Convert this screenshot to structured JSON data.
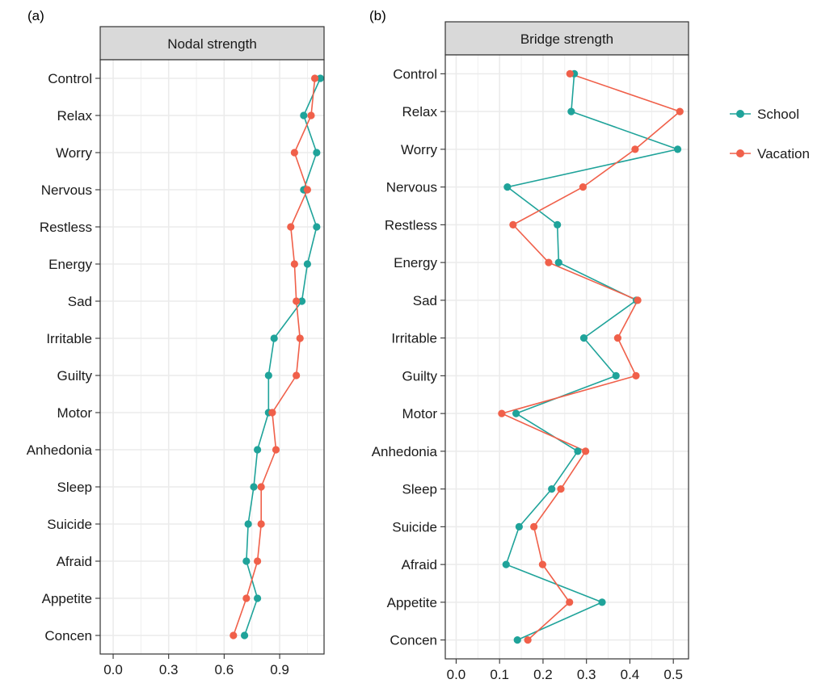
{
  "panels": [
    {
      "tag": "(a)",
      "strip": "Nodal strength"
    },
    {
      "tag": "(b)",
      "strip": "Bridge strength"
    }
  ],
  "legend": {
    "items": [
      {
        "label": "School",
        "color": "#1fa39a"
      },
      {
        "label": "Vacation",
        "color": "#f0604a"
      }
    ]
  },
  "colors": {
    "school": "#1fa39a",
    "vacation": "#f0604a",
    "strip_bg": "#d9d9d9",
    "grid": "#ebebeb",
    "axis": "#333333"
  },
  "chart_data": [
    {
      "type": "line",
      "title": "Nodal strength",
      "categories": [
        "Control",
        "Relax",
        "Worry",
        "Nervous",
        "Restless",
        "Energy",
        "Sad",
        "Irritable",
        "Guilty",
        "Motor",
        "Anhedonia",
        "Sleep",
        "Suicide",
        "Afraid",
        "Appetite",
        "Concen"
      ],
      "xlim": [
        -0.07,
        1.14
      ],
      "xticks": [
        0.0,
        0.3,
        0.6,
        0.9
      ],
      "xtick_labels": [
        "0.0",
        "0.3",
        "0.6",
        "0.9"
      ],
      "grid": true,
      "legend": "none",
      "series": [
        {
          "name": "School",
          "values": [
            1.12,
            1.03,
            1.1,
            1.03,
            1.1,
            1.05,
            1.02,
            0.87,
            0.84,
            0.84,
            0.78,
            0.76,
            0.73,
            0.72,
            0.78,
            0.71
          ]
        },
        {
          "name": "Vacation",
          "values": [
            1.09,
            1.07,
            0.98,
            1.05,
            0.96,
            0.98,
            0.99,
            1.01,
            0.99,
            0.86,
            0.88,
            0.8,
            0.8,
            0.78,
            0.72,
            0.65
          ]
        }
      ]
    },
    {
      "type": "line",
      "title": "Bridge strength",
      "categories": [
        "Control",
        "Relax",
        "Worry",
        "Nervous",
        "Restless",
        "Energy",
        "Sad",
        "Irritable",
        "Guilty",
        "Motor",
        "Anhedonia",
        "Sleep",
        "Suicide",
        "Afraid",
        "Appetite",
        "Concen"
      ],
      "xlim": [
        -0.025,
        0.535
      ],
      "xticks": [
        0.0,
        0.1,
        0.2,
        0.3,
        0.4,
        0.5
      ],
      "xtick_labels": [
        "0.0",
        "0.1",
        "0.2",
        "0.3",
        "0.4",
        "0.5"
      ],
      "grid": true,
      "legend": "right",
      "series": [
        {
          "name": "School",
          "values": [
            0.272,
            0.265,
            0.51,
            0.118,
            0.233,
            0.236,
            0.415,
            0.294,
            0.368,
            0.138,
            0.28,
            0.22,
            0.145,
            0.115,
            0.336,
            0.141
          ]
        },
        {
          "name": "Vacation",
          "values": [
            0.262,
            0.515,
            0.412,
            0.292,
            0.131,
            0.213,
            0.418,
            0.372,
            0.414,
            0.105,
            0.298,
            0.241,
            0.179,
            0.199,
            0.261,
            0.165
          ]
        }
      ]
    }
  ]
}
